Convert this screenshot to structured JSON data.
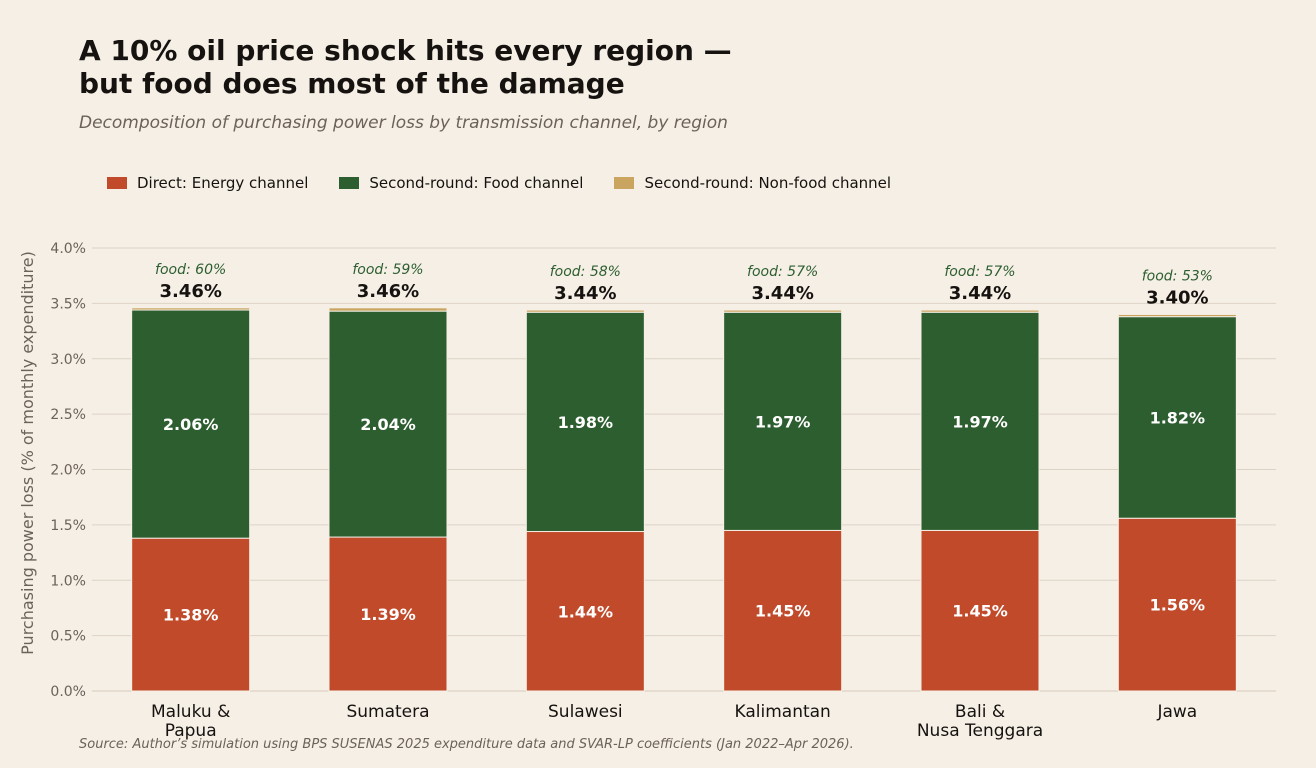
{
  "header": {
    "title_line1": "A 10% oil price shock hits every region —",
    "title_line2": "but food does most of the damage",
    "subtitle": "Decomposition of purchasing power loss by transmission channel, by region"
  },
  "legend": [
    {
      "label": "Direct: Energy channel",
      "color": "#c14a2a"
    },
    {
      "label": "Second-round: Food channel",
      "color": "#2d5e2f"
    },
    {
      "label": "Second-round: Non-food channel",
      "color": "#c9a560"
    }
  ],
  "source": "Source: Author’s simulation using BPS SUSENAS 2025 expenditure data and SVAR-LP coefficients (Jan 2022–Apr 2026).",
  "chart_data": {
    "type": "bar",
    "stacked": true,
    "title": "A 10% oil price shock hits every region — but food does most of the damage",
    "subtitle": "Decomposition of purchasing power loss by transmission channel, by region",
    "xlabel": "",
    "ylabel": "Purchasing power loss (% of monthly expenditure)",
    "ylim": [
      0,
      4.0
    ],
    "yticks": [
      0.0,
      0.5,
      1.0,
      1.5,
      2.0,
      2.5,
      3.0,
      3.5,
      4.0
    ],
    "ytick_labels": [
      "0.0%",
      "0.5%",
      "1.0%",
      "1.5%",
      "2.0%",
      "2.5%",
      "3.0%",
      "3.5%",
      "4.0%"
    ],
    "grid": true,
    "legend_position": "top-left",
    "categories": [
      [
        "Maluku &",
        "Papua"
      ],
      [
        "Sumatera"
      ],
      [
        "Sulawesi"
      ],
      [
        "Kalimantan"
      ],
      [
        "Bali &",
        "Nusa Tenggara"
      ],
      [
        "Jawa"
      ]
    ],
    "series": [
      {
        "name": "Direct: Energy channel",
        "color": "#c14a2a",
        "values": [
          1.38,
          1.39,
          1.44,
          1.45,
          1.45,
          1.56
        ],
        "labels": [
          "1.38%",
          "1.39%",
          "1.44%",
          "1.45%",
          "1.45%",
          "1.56%"
        ]
      },
      {
        "name": "Second-round: Food channel",
        "color": "#2d5e2f",
        "values": [
          2.06,
          2.04,
          1.98,
          1.97,
          1.97,
          1.82
        ],
        "labels": [
          "2.06%",
          "2.04%",
          "1.98%",
          "1.97%",
          "1.97%",
          "1.82%"
        ]
      },
      {
        "name": "Second-round: Non-food channel",
        "color": "#c9a560",
        "values": [
          0.02,
          0.03,
          0.02,
          0.02,
          0.02,
          0.02
        ]
      }
    ],
    "totals": [
      3.46,
      3.46,
      3.44,
      3.44,
      3.44,
      3.4
    ],
    "total_labels": [
      "3.46%",
      "3.46%",
      "3.44%",
      "3.44%",
      "3.44%",
      "3.40%"
    ],
    "food_share_labels": [
      "food: 60%",
      "food: 59%",
      "food: 58%",
      "food: 57%",
      "food: 57%",
      "food: 53%"
    ]
  }
}
